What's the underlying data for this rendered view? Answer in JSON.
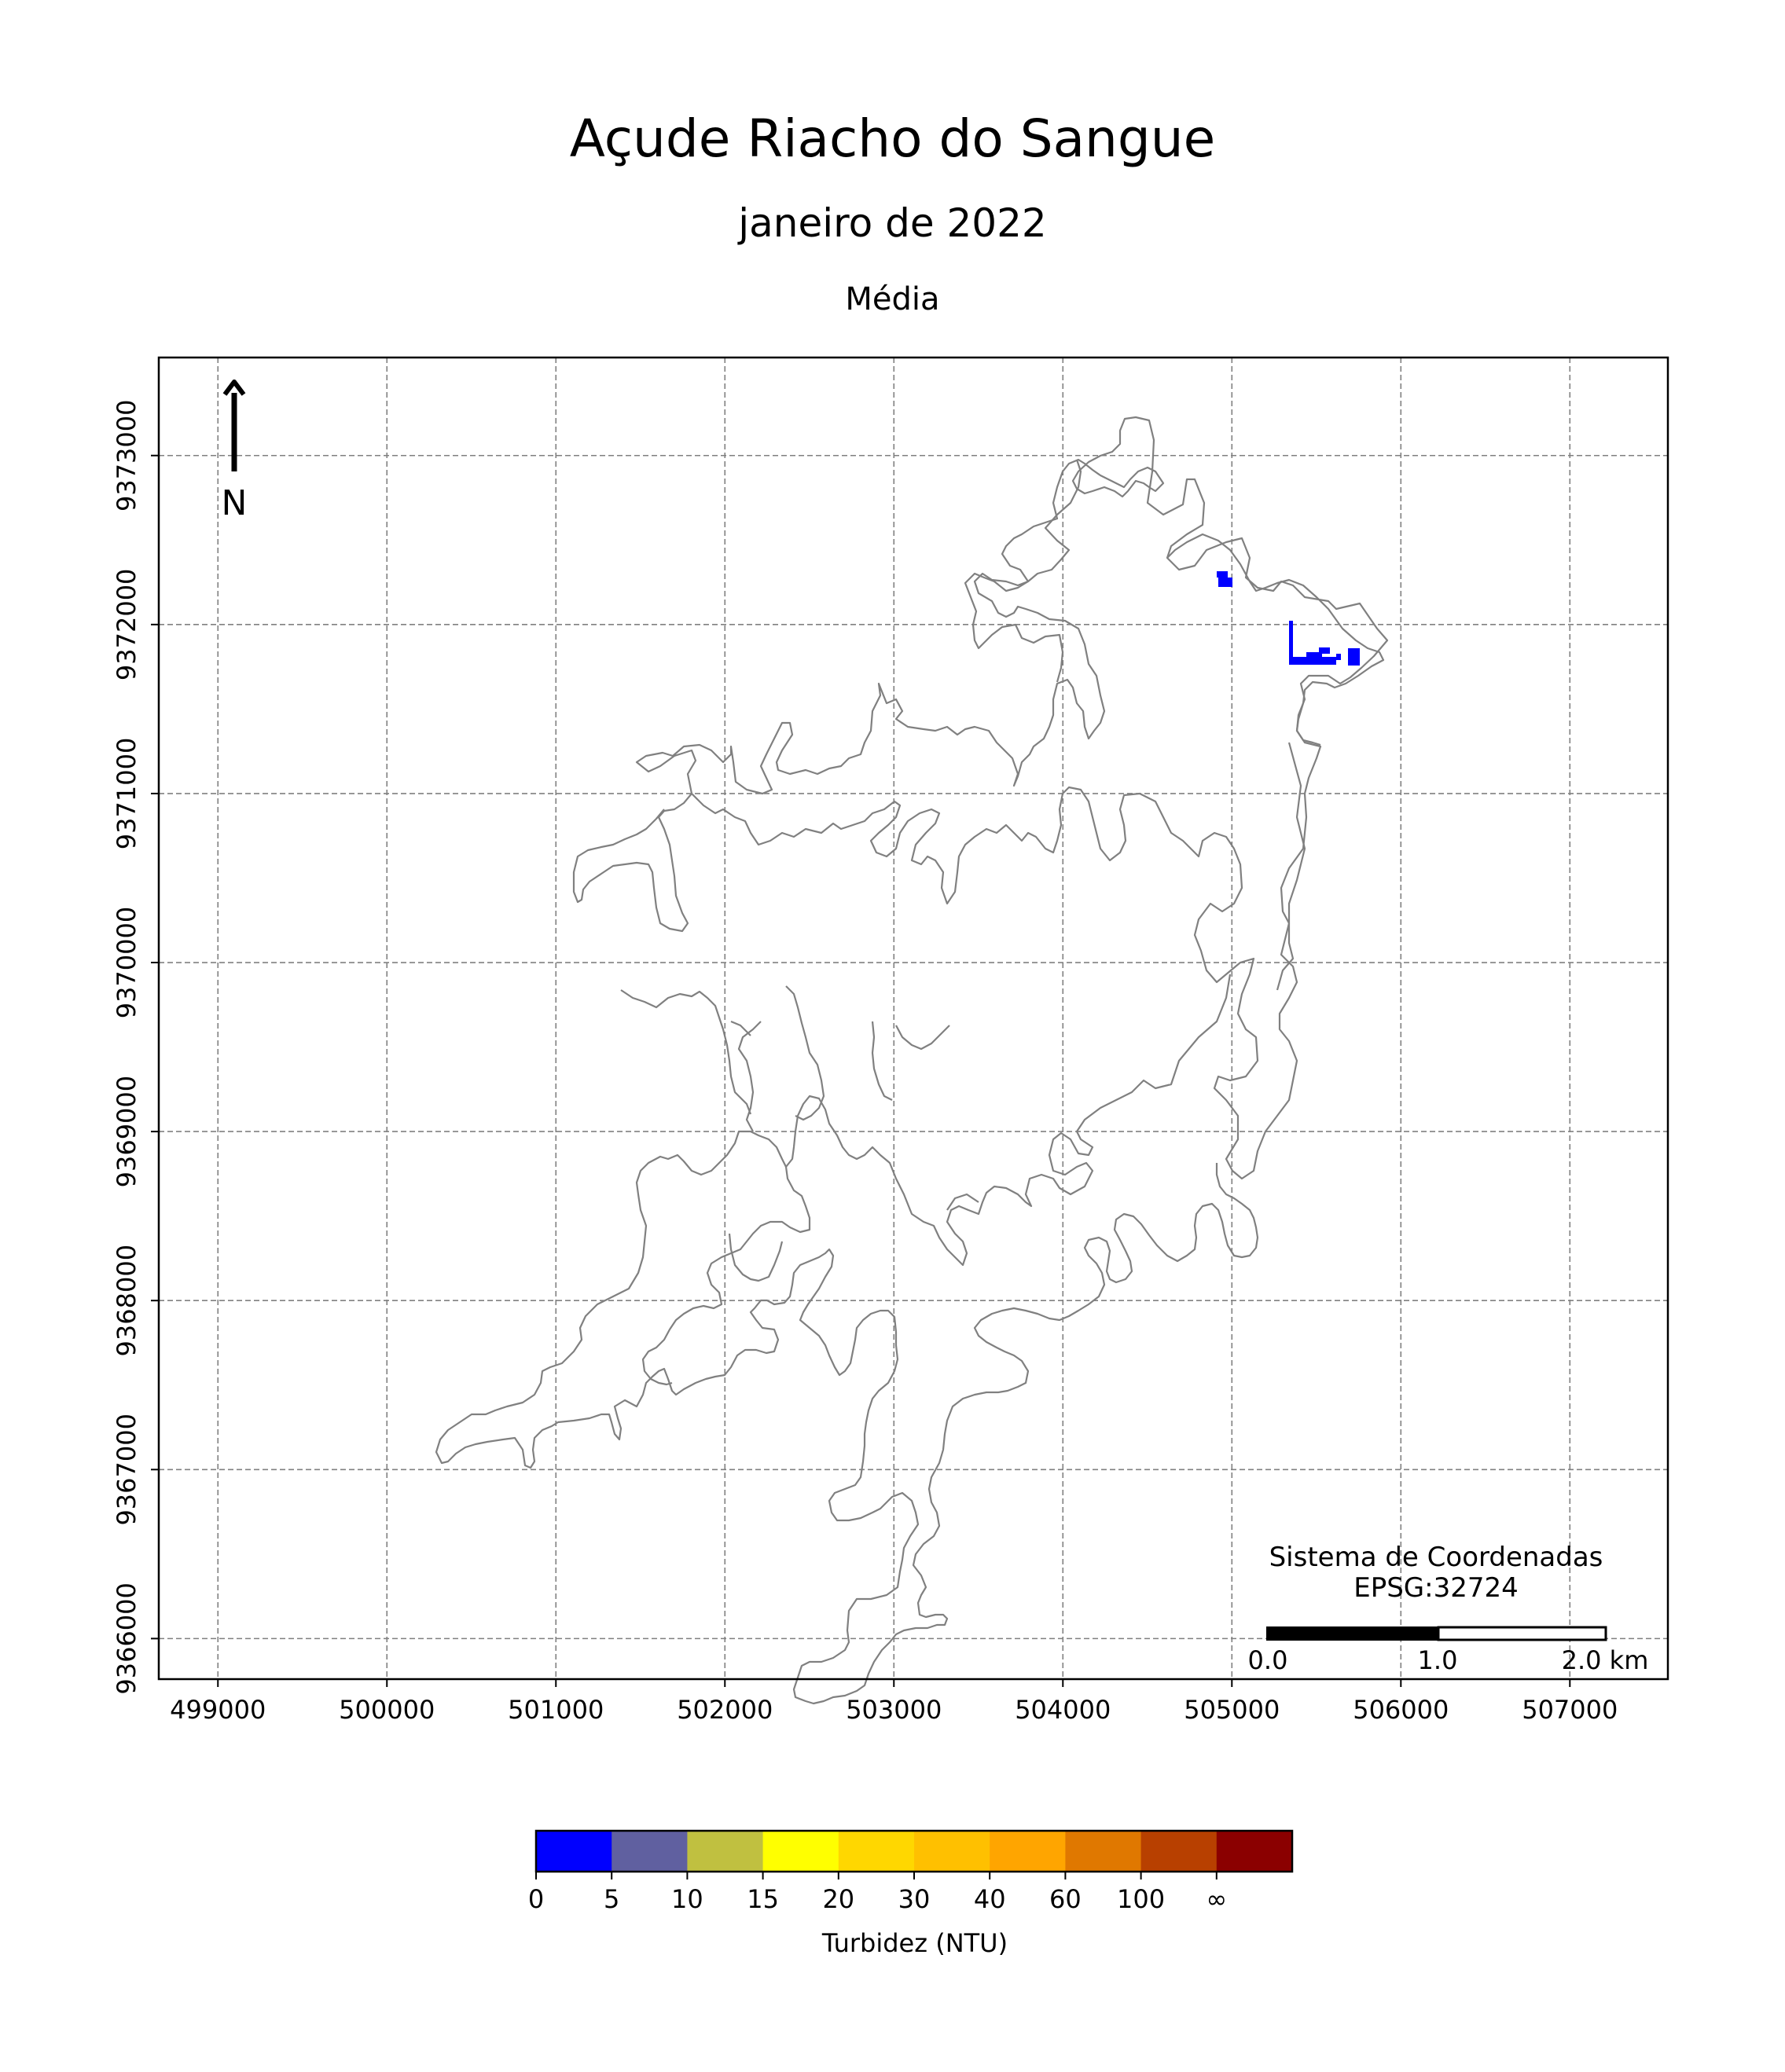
{
  "title": "Açude Riacho do Sangue",
  "subtitle": "janeiro de 2022",
  "statistic": "Média",
  "north_label": "N",
  "crs": {
    "line1": "Sistema de Coordenadas",
    "line2": "EPSG:32724"
  },
  "scalebar": {
    "labels": [
      "0.0",
      "1.0",
      "2.0 km"
    ]
  },
  "chart_data": {
    "type": "map",
    "x_ticks": [
      "499000",
      "500000",
      "501000",
      "502000",
      "503000",
      "504000",
      "505000",
      "506000",
      "507000"
    ],
    "y_ticks": [
      "9366000",
      "9367000",
      "9368000",
      "9369000",
      "9370000",
      "9371000",
      "9372000",
      "9373000"
    ],
    "xlim": [
      498650,
      507580
    ],
    "ylim": [
      9365760,
      9373580
    ],
    "grid": true,
    "grid_style": "dashed",
    "reservoir_outline_color": "#808080",
    "turbidity_pixels": [
      {
        "x": 504950,
        "y": 9372280,
        "class": "0-5"
      },
      {
        "x": 505450,
        "y": 9371780,
        "class": "0-5"
      },
      {
        "x": 505700,
        "y": 9371800,
        "class": "0-5"
      }
    ],
    "colorbar": {
      "label": "Turbidez (NTU)",
      "tick_labels": [
        "0",
        "5",
        "10",
        "15",
        "20",
        "30",
        "40",
        "60",
        "100",
        "∞"
      ],
      "colors": [
        "#0000ff",
        "#6060a0",
        "#c0c040",
        "#ffff00",
        "#ffd700",
        "#ffc000",
        "#ffa500",
        "#e07800",
        "#b84000",
        "#8b0000"
      ]
    }
  }
}
